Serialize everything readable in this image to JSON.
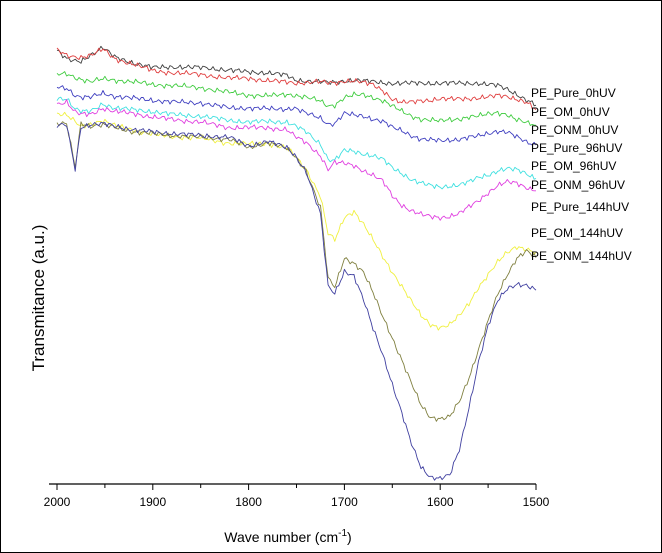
{
  "chart_data": {
    "type": "line",
    "xlabel": "Wave number (cm",
    "xlabel_sup": "-1",
    "xlabel_suffix": ")",
    "ylabel": "Transmitance (a.u.)",
    "xlim": [
      2000,
      1500
    ],
    "x_reversed": true,
    "ylim": [
      0,
      100
    ],
    "y_tick_labels_shown": false,
    "xticks": [
      2000,
      1900,
      1800,
      1700,
      1600,
      1500
    ],
    "xtick_labels": [
      "2000",
      "1900",
      "1800",
      "1700",
      "1600",
      "1500"
    ],
    "grid": false,
    "legend_placement": "right, at end of each line",
    "x": [
      2000,
      1990,
      1981,
      1975,
      1965,
      1952,
      1940,
      1920,
      1900,
      1880,
      1850,
      1820,
      1800,
      1780,
      1760,
      1752,
      1740,
      1725,
      1717,
      1710,
      1700,
      1690,
      1680,
      1670,
      1660,
      1650,
      1640,
      1630,
      1620,
      1610,
      1600,
      1590,
      1580,
      1570,
      1560,
      1550,
      1540,
      1530,
      1520,
      1510,
      1500
    ],
    "series": [
      {
        "name": "PE_Pure_0hUV",
        "color": "#404040",
        "values": [
          93.4,
          91.4,
          91.0,
          91.0,
          92.4,
          94.0,
          91.9,
          90.6,
          89.6,
          89.8,
          89.6,
          89.1,
          88.6,
          88.5,
          87.9,
          86.9,
          86.7,
          86.5,
          86.3,
          86.3,
          86.7,
          86.9,
          86.7,
          86.5,
          86.3,
          86.2,
          86.2,
          86.2,
          86.2,
          86.2,
          86.2,
          86.2,
          86.2,
          86.2,
          86.2,
          85.9,
          85.7,
          84.9,
          83.8,
          82.5,
          81.4
        ]
      },
      {
        "name": "PE_OM_0hUV",
        "color": "#e04040",
        "values": [
          93.4,
          92.2,
          91.9,
          91.9,
          92.4,
          93.6,
          91.5,
          90.4,
          88.9,
          88.5,
          88.1,
          87.3,
          87.3,
          86.7,
          86.5,
          86.3,
          86.3,
          86.5,
          86.3,
          86.3,
          86.7,
          86.7,
          86.3,
          85.9,
          84.7,
          82.7,
          81.9,
          82.1,
          82.5,
          82.5,
          82.7,
          82.7,
          82.9,
          82.9,
          82.9,
          83.1,
          83.6,
          83.4,
          82.7,
          81.9,
          80.4
        ]
      },
      {
        "name": "PE_OM_0hUV",
        "color": "#40cc40",
        "values": [
          88.1,
          88.3,
          87.5,
          87.1,
          86.5,
          87.1,
          86.9,
          86.5,
          85.9,
          85.7,
          85.2,
          84.2,
          83.6,
          83.4,
          83.8,
          83.6,
          83.1,
          82.3,
          81.2,
          81.5,
          83.1,
          83.6,
          83.6,
          83.1,
          82.5,
          81.2,
          80.0,
          79.0,
          78.4,
          78.2,
          77.9,
          78.2,
          78.4,
          78.9,
          79.0,
          79.4,
          79.8,
          79.4,
          78.2,
          77.5,
          77.0
        ]
      },
      {
        "name": "PE_ONM_0hUV",
        "color": "#4040c0",
        "values": [
          85.4,
          85.2,
          83.6,
          83.1,
          83.1,
          84.0,
          83.4,
          82.9,
          82.5,
          82.1,
          81.9,
          80.8,
          80.8,
          80.6,
          80.6,
          80.8,
          79.6,
          78.6,
          77.3,
          77.5,
          79.6,
          79.2,
          79.0,
          78.4,
          77.9,
          76.5,
          75.8,
          74.8,
          74.0,
          73.8,
          73.6,
          73.8,
          74.0,
          74.4,
          74.6,
          75.2,
          75.8,
          75.6,
          74.4,
          73.3,
          72.7
        ]
      },
      {
        "name": "PE_Pure_96hUV",
        "color": "#40e0e0",
        "values": [
          82.9,
          82.9,
          80.6,
          80.0,
          80.0,
          81.7,
          80.8,
          80.4,
          80.0,
          79.4,
          79.0,
          78.1,
          77.7,
          77.9,
          77.7,
          76.9,
          75.6,
          72.9,
          69.6,
          69.4,
          71.5,
          71.3,
          70.8,
          70.4,
          69.6,
          67.7,
          66.5,
          65.2,
          64.4,
          63.8,
          63.5,
          63.8,
          64.0,
          64.6,
          65.6,
          66.2,
          67.1,
          67.5,
          67.3,
          66.5,
          65.4
        ]
      },
      {
        "name": "PE_Pure_96hUV",
        "color": "#e040e0",
        "values": [
          81.7,
          82.1,
          79.8,
          79.4,
          79.4,
          80.8,
          80.0,
          79.6,
          78.8,
          78.3,
          77.7,
          76.5,
          76.5,
          76.5,
          76.0,
          74.6,
          73.3,
          70.4,
          67.3,
          68.8,
          68.7,
          68.3,
          67.1,
          66.0,
          64.8,
          61.7,
          59.6,
          58.3,
          57.5,
          57.1,
          56.9,
          57.1,
          57.7,
          59.2,
          60.6,
          62.3,
          63.8,
          64.6,
          64.4,
          63.5,
          62.7
        ]
      },
      {
        "name": "PE_ONM_96hUV",
        "color": "#f0f040",
        "values": [
          79.6,
          79.2,
          77.7,
          76.7,
          77.3,
          78.1,
          76.9,
          76.0,
          75.0,
          74.6,
          74.2,
          73.1,
          72.9,
          73.1,
          71.9,
          70.4,
          67.5,
          61.5,
          53.3,
          51.9,
          56.9,
          58.3,
          55.4,
          51.9,
          48.3,
          45.0,
          41.9,
          38.5,
          35.4,
          33.5,
          32.9,
          33.5,
          35.4,
          38.1,
          41.7,
          44.4,
          47.1,
          49.2,
          50.6,
          50.0,
          49.2
        ]
      },
      {
        "name": "PE_Pure_144hUV",
        "color": "#808040",
        "values": [
          77.3,
          77.3,
          67.9,
          77.5,
          76.9,
          77.1,
          76.5,
          75.6,
          75.2,
          74.8,
          74.4,
          74.0,
          72.1,
          73.3,
          71.9,
          70.4,
          67.1,
          59.0,
          43.5,
          41.7,
          48.1,
          46.9,
          44.8,
          40.4,
          35.4,
          30.6,
          25.6,
          20.6,
          16.0,
          13.3,
          12.9,
          13.3,
          16.7,
          21.9,
          28.1,
          34.2,
          40.0,
          44.4,
          48.1,
          49.6,
          48.1
        ]
      },
      {
        "name": "PE_OM_144hUV",
        "color": "#4040a0",
        "values": [
          76.9,
          77.1,
          67.5,
          76.7,
          77.1,
          77.3,
          76.9,
          76.0,
          75.6,
          75.2,
          74.8,
          74.4,
          72.5,
          73.5,
          72.1,
          70.6,
          66.9,
          57.5,
          41.9,
          40.4,
          45.2,
          44.0,
          38.8,
          32.7,
          27.1,
          20.4,
          14.0,
          7.5,
          2.5,
          0.2,
          -0.2,
          0.6,
          6.3,
          15.4,
          25.2,
          33.1,
          38.8,
          41.5,
          42.3,
          41.9,
          41.0
        ]
      }
    ],
    "legend_labels_printed": [
      "PE_Pure_0hUV",
      "PE_OM_0hUV",
      "PE_ONM_0hUV",
      "PE_Pure_96hUV",
      "PE_OM_96hUV",
      "PE_ONM_96hUV",
      "PE_Pure_144hUV",
      "PE_OM_144hUV",
      "PE_ONM_144hUV"
    ]
  }
}
